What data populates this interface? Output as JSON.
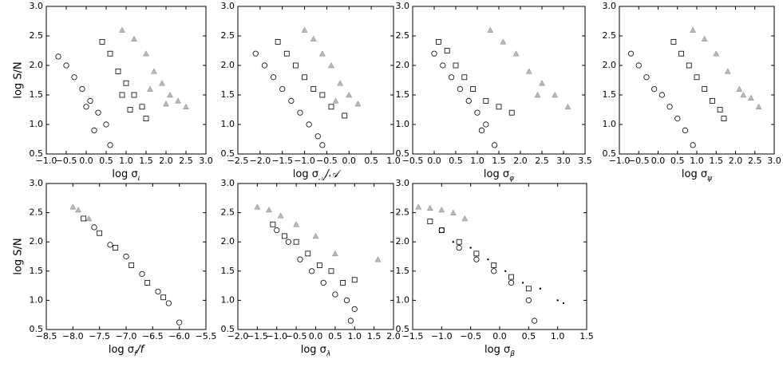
{
  "chart_data": [
    {
      "type": "scatter",
      "ylabel": "log S/N",
      "xlabel": {
        "text": "log σ",
        "sub": "ι"
      },
      "xlim": [
        -1,
        3
      ],
      "ylim": [
        0.5,
        3
      ],
      "xticks": [
        {
          "value": -1,
          "label": "−1.0"
        },
        {
          "value": -0.5,
          "label": "−0.5"
        },
        {
          "value": 0,
          "label": "0.0"
        },
        {
          "value": 0.5,
          "label": "0.5"
        },
        {
          "value": 1,
          "label": "1.0"
        },
        {
          "value": 1.5,
          "label": "1.5"
        },
        {
          "value": 2,
          "label": "2.0"
        },
        {
          "value": 2.5,
          "label": "2.5"
        },
        {
          "value": 3,
          "label": "3.0"
        }
      ],
      "yticks": [
        {
          "value": 0.5,
          "label": "0.5"
        },
        {
          "value": 1,
          "label": "1.0"
        },
        {
          "value": 1.5,
          "label": "1.5"
        },
        {
          "value": 2,
          "label": "2.0"
        },
        {
          "value": 2.5,
          "label": "2.5"
        },
        {
          "value": 3,
          "label": "3.0"
        }
      ],
      "series": [
        {
          "marker": "^",
          "color": "#888888",
          "x": [
            0.9,
            1.2,
            1.5,
            1.7,
            1.9,
            2.1,
            2.3,
            2.5,
            1.6,
            2.0
          ],
          "values": [
            2.6,
            2.45,
            2.2,
            1.9,
            1.7,
            1.5,
            1.4,
            1.3,
            1.6,
            1.35
          ]
        },
        {
          "marker": "s",
          "color": "#000000",
          "x": [
            0.4,
            0.6,
            0.8,
            1.0,
            1.2,
            1.4,
            1.5,
            0.9,
            1.1
          ],
          "values": [
            2.4,
            2.2,
            1.9,
            1.7,
            1.5,
            1.3,
            1.1,
            1.5,
            1.25
          ]
        },
        {
          "marker": "o",
          "color": "#000000",
          "x": [
            -0.7,
            -0.5,
            -0.3,
            -0.1,
            0.1,
            0.3,
            0.5,
            0.6,
            0.2,
            0.0
          ],
          "values": [
            2.15,
            2.0,
            1.8,
            1.6,
            1.4,
            1.2,
            1.0,
            0.65,
            0.9,
            1.3
          ]
        }
      ]
    },
    {
      "type": "scatter",
      "xlabel": {
        "text": "log σ",
        "sub": "𝒜",
        "tail": "/𝒜"
      },
      "xlim": [
        -2.5,
        1
      ],
      "ylim": [
        0.5,
        3
      ],
      "xticks": [
        {
          "value": -2.5,
          "label": "−2.5"
        },
        {
          "value": -2,
          "label": "−2.0"
        },
        {
          "value": -1.5,
          "label": "−1.5"
        },
        {
          "value": -1,
          "label": "−1.0"
        },
        {
          "value": -0.5,
          "label": "−0.5"
        },
        {
          "value": 0,
          "label": "0.0"
        },
        {
          "value": 0.5,
          "label": "0.5"
        },
        {
          "value": 1,
          "label": "1.0"
        }
      ],
      "yticks": [
        {
          "value": 0.5,
          "label": "0.5"
        },
        {
          "value": 1,
          "label": "1.0"
        },
        {
          "value": 1.5,
          "label": "1.5"
        },
        {
          "value": 2,
          "label": "2.0"
        },
        {
          "value": 2.5,
          "label": "2.5"
        },
        {
          "value": 3,
          "label": "3.0"
        }
      ],
      "series": [
        {
          "marker": "^",
          "color": "#888888",
          "x": [
            -1.0,
            -0.8,
            -0.6,
            -0.4,
            -0.2,
            0.0,
            0.2,
            -0.3
          ],
          "values": [
            2.6,
            2.45,
            2.2,
            2.0,
            1.7,
            1.5,
            1.35,
            1.4
          ]
        },
        {
          "marker": "s",
          "color": "#000000",
          "x": [
            -1.6,
            -1.4,
            -1.2,
            -1.0,
            -0.8,
            -0.6,
            -0.4,
            -0.1
          ],
          "values": [
            2.4,
            2.2,
            2.0,
            1.8,
            1.6,
            1.5,
            1.3,
            1.15
          ]
        },
        {
          "marker": "o",
          "color": "#000000",
          "x": [
            -2.1,
            -1.9,
            -1.7,
            -1.5,
            -1.3,
            -1.1,
            -0.9,
            -0.7,
            -0.6
          ],
          "values": [
            2.2,
            2.0,
            1.8,
            1.6,
            1.4,
            1.2,
            1.0,
            0.8,
            0.65
          ]
        }
      ]
    },
    {
      "type": "scatter",
      "xlabel": {
        "text": "log σ",
        "sub": "φ"
      },
      "xlim": [
        -0.5,
        3.5
      ],
      "ylim": [
        0.5,
        3
      ],
      "xticks": [
        {
          "value": -0.5,
          "label": "−0.5"
        },
        {
          "value": 0,
          "label": "0.0"
        },
        {
          "value": 0.5,
          "label": "0.5"
        },
        {
          "value": 1,
          "label": "1.0"
        },
        {
          "value": 1.5,
          "label": "1.5"
        },
        {
          "value": 2,
          "label": "2.0"
        },
        {
          "value": 2.5,
          "label": "2.5"
        },
        {
          "value": 3,
          "label": "3.0"
        },
        {
          "value": 3.5,
          "label": "3.5"
        }
      ],
      "yticks": [
        {
          "value": 0.5,
          "label": "0.5"
        },
        {
          "value": 1,
          "label": "1.0"
        },
        {
          "value": 1.5,
          "label": "1.5"
        },
        {
          "value": 2,
          "label": "2.0"
        },
        {
          "value": 2.5,
          "label": "2.5"
        },
        {
          "value": 3,
          "label": "3.0"
        }
      ],
      "series": [
        {
          "marker": "^",
          "color": "#888888",
          "x": [
            1.3,
            1.6,
            1.9,
            2.2,
            2.5,
            2.8,
            3.1,
            2.4
          ],
          "values": [
            2.6,
            2.4,
            2.2,
            1.9,
            1.7,
            1.5,
            1.3,
            1.5
          ]
        },
        {
          "marker": "s",
          "color": "#000000",
          "x": [
            0.1,
            0.3,
            0.5,
            0.7,
            0.9,
            1.2,
            1.5,
            1.8
          ],
          "values": [
            2.4,
            2.25,
            2.0,
            1.8,
            1.6,
            1.4,
            1.3,
            1.2
          ]
        },
        {
          "marker": "o",
          "color": "#000000",
          "x": [
            0.0,
            0.2,
            0.4,
            0.6,
            0.8,
            1.0,
            1.2,
            1.4,
            1.1
          ],
          "values": [
            2.2,
            2.0,
            1.8,
            1.6,
            1.4,
            1.2,
            1.0,
            0.65,
            0.9
          ]
        }
      ]
    },
    {
      "type": "scatter",
      "xlabel": {
        "text": "log σ",
        "sub": "ψ"
      },
      "xlim": [
        -1,
        3
      ],
      "ylim": [
        0.5,
        3
      ],
      "xticks": [
        {
          "value": -1,
          "label": "−1.0"
        },
        {
          "value": -0.5,
          "label": "−0.5"
        },
        {
          "value": 0,
          "label": "0.0"
        },
        {
          "value": 0.5,
          "label": "0.5"
        },
        {
          "value": 1,
          "label": "1.0"
        },
        {
          "value": 1.5,
          "label": "1.5"
        },
        {
          "value": 2,
          "label": "2.0"
        },
        {
          "value": 2.5,
          "label": "2.5"
        },
        {
          "value": 3,
          "label": "3.0"
        }
      ],
      "yticks": [
        {
          "value": 0.5,
          "label": "0.5"
        },
        {
          "value": 1,
          "label": "1.0"
        },
        {
          "value": 1.5,
          "label": "1.5"
        },
        {
          "value": 2,
          "label": "2.0"
        },
        {
          "value": 2.5,
          "label": "2.5"
        },
        {
          "value": 3,
          "label": "3.0"
        }
      ],
      "series": [
        {
          "marker": "^",
          "color": "#888888",
          "x": [
            0.9,
            1.2,
            1.5,
            1.8,
            2.1,
            2.4,
            2.6,
            2.2
          ],
          "values": [
            2.6,
            2.45,
            2.2,
            1.9,
            1.6,
            1.45,
            1.3,
            1.5
          ]
        },
        {
          "marker": "s",
          "color": "#000000",
          "x": [
            0.4,
            0.6,
            0.8,
            1.0,
            1.2,
            1.4,
            1.6,
            1.7
          ],
          "values": [
            2.4,
            2.2,
            2.0,
            1.8,
            1.6,
            1.4,
            1.25,
            1.1
          ]
        },
        {
          "marker": "o",
          "color": "#000000",
          "x": [
            -0.7,
            -0.5,
            -0.3,
            -0.1,
            0.1,
            0.3,
            0.5,
            0.7,
            0.9
          ],
          "values": [
            2.2,
            2.0,
            1.8,
            1.6,
            1.5,
            1.3,
            1.1,
            0.9,
            0.65
          ]
        }
      ]
    },
    {
      "type": "scatter",
      "ylabel": "log S/N",
      "xlabel": {
        "text": "log σ",
        "sub": "f",
        "tail": "/f"
      },
      "xlim": [
        -8.5,
        -5.5
      ],
      "ylim": [
        0.5,
        3
      ],
      "xticks": [
        {
          "value": -8.5,
          "label": "−8.5"
        },
        {
          "value": -8,
          "label": "−8.0"
        },
        {
          "value": -7.5,
          "label": "−7.5"
        },
        {
          "value": -7,
          "label": "−7.0"
        },
        {
          "value": -6.5,
          "label": "−6.5"
        },
        {
          "value": -6,
          "label": "−6.0"
        },
        {
          "value": -5.5,
          "label": "−5.5"
        }
      ],
      "yticks": [
        {
          "value": 0.5,
          "label": "0.5"
        },
        {
          "value": 1,
          "label": "1.0"
        },
        {
          "value": 1.5,
          "label": "1.5"
        },
        {
          "value": 2,
          "label": "2.0"
        },
        {
          "value": 2.5,
          "label": "2.5"
        },
        {
          "value": 3,
          "label": "3.0"
        }
      ],
      "series": [
        {
          "marker": "^",
          "color": "#888888",
          "x": [
            -8.0,
            -7.9,
            -7.7
          ],
          "values": [
            2.6,
            2.55,
            2.4
          ]
        },
        {
          "marker": "s",
          "color": "#000000",
          "x": [
            -7.8,
            -7.5,
            -7.2,
            -6.9,
            -6.6,
            -6.3
          ],
          "values": [
            2.4,
            2.15,
            1.9,
            1.6,
            1.3,
            1.05
          ]
        },
        {
          "marker": "o",
          "color": "#000000",
          "x": [
            -7.6,
            -7.3,
            -7.0,
            -6.7,
            -6.4,
            -6.2,
            -6.0
          ],
          "values": [
            2.25,
            1.95,
            1.75,
            1.45,
            1.15,
            0.95,
            0.62
          ]
        }
      ]
    },
    {
      "type": "scatter",
      "xlabel": {
        "text": "log σ",
        "sub": "λ"
      },
      "xlim": [
        -2,
        2
      ],
      "ylim": [
        0.5,
        3
      ],
      "xticks": [
        {
          "value": -2,
          "label": "−2.0"
        },
        {
          "value": -1.5,
          "label": "−1.5"
        },
        {
          "value": -1,
          "label": "−1.0"
        },
        {
          "value": -0.5,
          "label": "−0.5"
        },
        {
          "value": 0,
          "label": "0.0"
        },
        {
          "value": 0.5,
          "label": "0.5"
        },
        {
          "value": 1,
          "label": "1.0"
        },
        {
          "value": 1.5,
          "label": "1.5"
        },
        {
          "value": 2,
          "label": "2.0"
        }
      ],
      "yticks": [
        {
          "value": 0.5,
          "label": "0.5"
        },
        {
          "value": 1,
          "label": "1.0"
        },
        {
          "value": 1.5,
          "label": "1.5"
        },
        {
          "value": 2,
          "label": "2.0"
        },
        {
          "value": 2.5,
          "label": "2.5"
        },
        {
          "value": 3,
          "label": "3.0"
        }
      ],
      "series": [
        {
          "marker": "^",
          "color": "#888888",
          "x": [
            -1.5,
            -1.2,
            -0.9,
            -0.5,
            0.0,
            0.5,
            1.6
          ],
          "values": [
            2.6,
            2.55,
            2.45,
            2.3,
            2.1,
            1.8,
            1.7
          ]
        },
        {
          "marker": "s",
          "color": "#000000",
          "x": [
            -1.1,
            -0.8,
            -0.5,
            -0.2,
            0.1,
            0.4,
            0.7,
            1.0
          ],
          "values": [
            2.3,
            2.1,
            2.0,
            1.8,
            1.6,
            1.5,
            1.3,
            1.35
          ]
        },
        {
          "marker": "o",
          "color": "#000000",
          "x": [
            -1.0,
            -0.7,
            -0.4,
            -0.1,
            0.2,
            0.5,
            0.8,
            0.9,
            1.0
          ],
          "values": [
            2.2,
            2.0,
            1.7,
            1.5,
            1.3,
            1.1,
            1.0,
            0.65,
            0.85
          ]
        }
      ]
    },
    {
      "type": "scatter",
      "xlabel": {
        "text": "log σ",
        "sub": "β"
      },
      "xlim": [
        -1.5,
        1.5
      ],
      "ylim": [
        0.5,
        3
      ],
      "xticks": [
        {
          "value": -1.5,
          "label": "−1.5"
        },
        {
          "value": -1,
          "label": "−1.0"
        },
        {
          "value": -0.5,
          "label": "−0.5"
        },
        {
          "value": 0,
          "label": "0.0"
        },
        {
          "value": 0.5,
          "label": "0.5"
        },
        {
          "value": 1,
          "label": "1.0"
        },
        {
          "value": 1.5,
          "label": "1.5"
        }
      ],
      "yticks": [
        {
          "value": 0.5,
          "label": "0.5"
        },
        {
          "value": 1,
          "label": "1.0"
        },
        {
          "value": 1.5,
          "label": "1.5"
        },
        {
          "value": 2,
          "label": "2.0"
        },
        {
          "value": 2.5,
          "label": "2.5"
        },
        {
          "value": 3,
          "label": "3.0"
        }
      ],
      "series": [
        {
          "marker": "^",
          "color": "#888888",
          "x": [
            -1.4,
            -1.2,
            -1.0,
            -0.8,
            -0.6
          ],
          "values": [
            2.6,
            2.58,
            2.55,
            2.5,
            2.4
          ]
        },
        {
          "marker": "s",
          "color": "#000000",
          "x": [
            -1.2,
            -1.0,
            -0.7,
            -0.4,
            -0.1,
            0.2,
            0.5
          ],
          "values": [
            2.35,
            2.2,
            2.0,
            1.8,
            1.6,
            1.4,
            1.2
          ]
        },
        {
          "marker": "o",
          "color": "#000000",
          "x": [
            -1.0,
            -0.7,
            -0.4,
            -0.1,
            0.2,
            0.5,
            0.6
          ],
          "values": [
            2.2,
            1.9,
            1.7,
            1.5,
            1.3,
            1.0,
            0.65
          ]
        },
        {
          "marker": ".",
          "color": "#000000",
          "x": [
            -0.8,
            -0.5,
            -0.2,
            0.1,
            0.4,
            0.7,
            1.0,
            1.1
          ],
          "values": [
            2.0,
            1.9,
            1.7,
            1.5,
            1.3,
            1.2,
            1.0,
            0.95
          ]
        }
      ]
    }
  ]
}
